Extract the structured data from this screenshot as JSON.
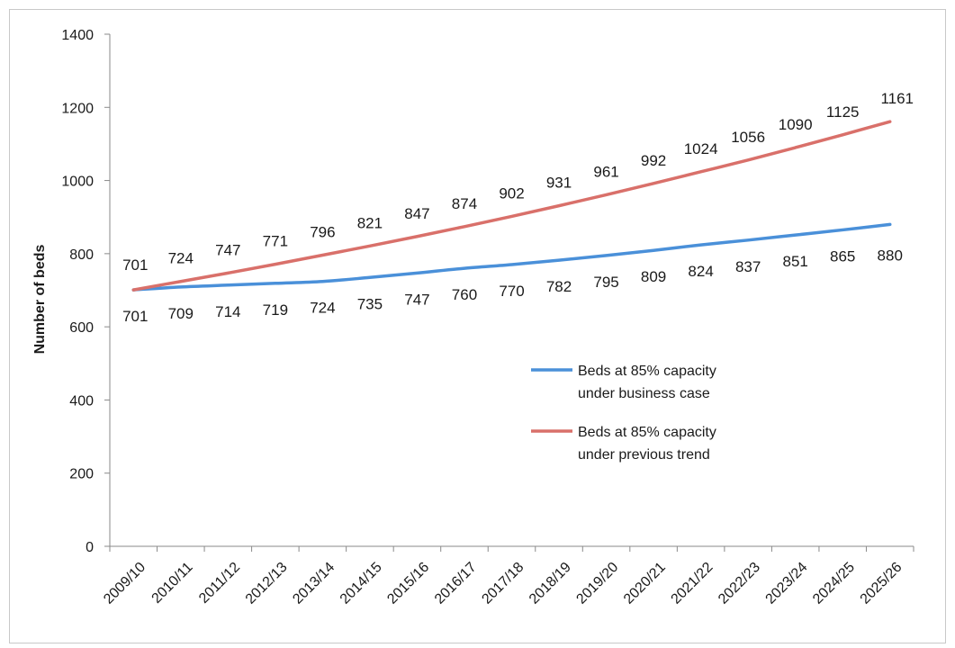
{
  "chart_data": {
    "type": "line",
    "title": "",
    "xlabel": "",
    "ylabel": "Number of beds",
    "ylim": [
      0,
      1400
    ],
    "yticks": [
      0,
      200,
      400,
      600,
      800,
      1000,
      1200,
      1400
    ],
    "categories": [
      "2009/10",
      "2010/11",
      "2011/12",
      "2012/13",
      "2013/14",
      "2014/15",
      "2015/16",
      "2016/17",
      "2017/18",
      "2018/19",
      "2019/20",
      "2020/21",
      "2021/22",
      "2022/23",
      "2023/24",
      "2024/25",
      "2025/26"
    ],
    "grid": false,
    "legend_position": "right-middle",
    "series": [
      {
        "name": "Beds at 85% capacity under business case",
        "name_lines": [
          "Beds at 85% capacity",
          "under business case"
        ],
        "color": "#4a90d9",
        "label_position": "below",
        "values": [
          701,
          709,
          714,
          719,
          724,
          735,
          747,
          760,
          770,
          782,
          795,
          809,
          824,
          837,
          851,
          865,
          880
        ]
      },
      {
        "name": "Beds at 85% capacity under previous trend",
        "name_lines": [
          "Beds at 85% capacity",
          "under previous trend"
        ],
        "color": "#d9706a",
        "label_position": "above",
        "values": [
          701,
          724,
          747,
          771,
          796,
          821,
          847,
          874,
          902,
          931,
          961,
          992,
          1024,
          1056,
          1090,
          1125,
          1161
        ]
      }
    ]
  }
}
